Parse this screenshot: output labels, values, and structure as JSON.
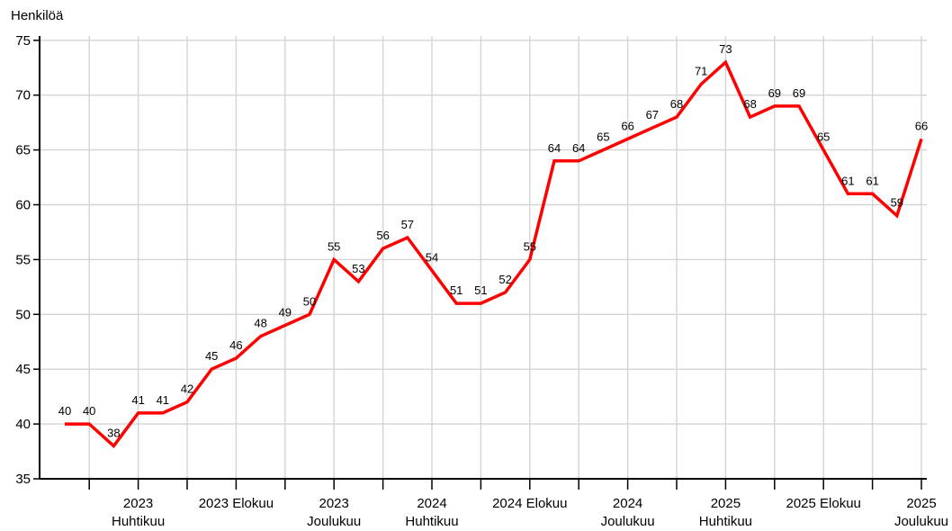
{
  "chart_data": {
    "type": "line",
    "ylabel": "Henkilöä",
    "xlabel": "",
    "title": "",
    "ylim": [
      35,
      75
    ],
    "yticks": [
      35,
      40,
      45,
      50,
      55,
      60,
      65,
      70,
      75
    ],
    "grid": true,
    "legend": "none",
    "series_color": "#ff0000",
    "x": [
      "2023-01",
      "2023-02",
      "2023-03",
      "2023-04",
      "2023-05",
      "2023-06",
      "2023-07",
      "2023-08",
      "2023-09",
      "2023-10",
      "2023-11",
      "2023-12",
      "2024-01",
      "2024-02",
      "2024-03",
      "2024-04",
      "2024-05",
      "2024-06",
      "2024-07",
      "2024-08",
      "2024-09",
      "2024-10",
      "2024-11",
      "2024-12",
      "2025-01",
      "2025-02",
      "2025-03",
      "2025-04",
      "2025-05",
      "2025-06",
      "2025-07",
      "2025-08",
      "2025-09",
      "2025-10",
      "2025-11",
      "2025-12"
    ],
    "series": [
      {
        "values": [
          40,
          40,
          38,
          41,
          41,
          42,
          45,
          46,
          48,
          49,
          50,
          55,
          53,
          56,
          57,
          54,
          51,
          51,
          52,
          55,
          64,
          64,
          65,
          66,
          67,
          68,
          71,
          73,
          68,
          69,
          69,
          65,
          61,
          61,
          59,
          66
        ]
      }
    ],
    "x_tick_labels": [
      {
        "month": "2023-04",
        "lines": [
          "2023",
          "Huhtikuu"
        ]
      },
      {
        "month": "2023-08",
        "lines": [
          "2023 Elokuu"
        ]
      },
      {
        "month": "2023-12",
        "lines": [
          "2023",
          "Joulukuu"
        ]
      },
      {
        "month": "2024-04",
        "lines": [
          "2024",
          "Huhtikuu"
        ]
      },
      {
        "month": "2024-08",
        "lines": [
          "2024 Elokuu"
        ]
      },
      {
        "month": "2024-12",
        "lines": [
          "2024",
          "Joulukuu"
        ]
      },
      {
        "month": "2025-04",
        "lines": [
          "2025",
          "Huhtikuu"
        ]
      },
      {
        "month": "2025-08",
        "lines": [
          "2025 Elokuu"
        ]
      },
      {
        "month": "2025-12",
        "lines": [
          "2025",
          "Joulukuu"
        ]
      }
    ]
  }
}
